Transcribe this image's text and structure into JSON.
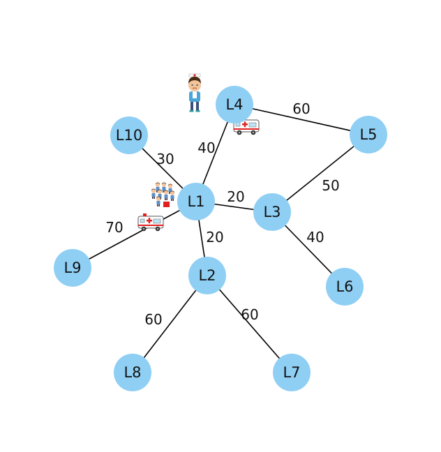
{
  "colors": {
    "node_fill": "#8fcff4",
    "edge": "#000000",
    "text": "#111111"
  },
  "nodes": [
    {
      "id": "L1",
      "label": "L1"
    },
    {
      "id": "L2",
      "label": "L2"
    },
    {
      "id": "L3",
      "label": "L3"
    },
    {
      "id": "L4",
      "label": "L4"
    },
    {
      "id": "L5",
      "label": "L5"
    },
    {
      "id": "L6",
      "label": "L6"
    },
    {
      "id": "L7",
      "label": "L7"
    },
    {
      "id": "L8",
      "label": "L8"
    },
    {
      "id": "L9",
      "label": "L9"
    },
    {
      "id": "L10",
      "label": "L10"
    }
  ],
  "edges": [
    {
      "from": "L1",
      "to": "L10",
      "weight": "30"
    },
    {
      "from": "L1",
      "to": "L4",
      "weight": "40"
    },
    {
      "from": "L1",
      "to": "L3",
      "weight": "20"
    },
    {
      "from": "L1",
      "to": "L2",
      "weight": "20"
    },
    {
      "from": "L1",
      "to": "L9",
      "weight": "70"
    },
    {
      "from": "L4",
      "to": "L5",
      "weight": "60"
    },
    {
      "from": "L3",
      "to": "L5",
      "weight": "50"
    },
    {
      "from": "L3",
      "to": "L6",
      "weight": "40"
    },
    {
      "from": "L2",
      "to": "L8",
      "weight": "60"
    },
    {
      "from": "L2",
      "to": "L7",
      "weight": "60"
    }
  ],
  "icons": [
    {
      "name": "patient-icon",
      "near": "L4"
    },
    {
      "name": "ambulance-icon",
      "near": "L4"
    },
    {
      "name": "crowd-icon",
      "near": "L1"
    },
    {
      "name": "ambulance-icon",
      "near": "L1"
    }
  ]
}
